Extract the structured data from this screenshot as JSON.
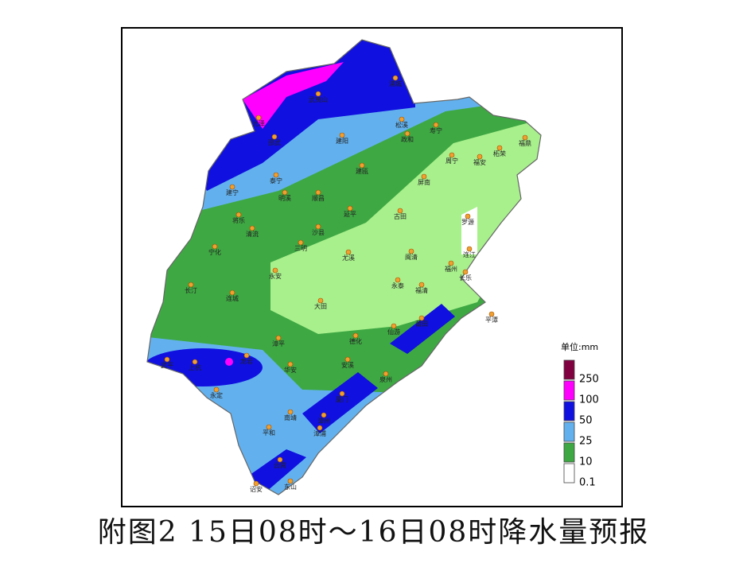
{
  "legend": {
    "unit": "单位:mm",
    "items": [
      {
        "label": 250,
        "color": "#800040"
      },
      {
        "label": 100,
        "color": "#ff00ff"
      },
      {
        "label": 50,
        "color": "#1010e0"
      },
      {
        "label": 25,
        "color": "#62b1ee"
      },
      {
        "label": 10,
        "color": "#3ea843"
      },
      {
        "label": 0.1,
        "color": "#ffffff"
      }
    ]
  },
  "cities": [
    "浦城",
    "武夷山",
    "光泽",
    "邵武",
    "建阳",
    "松溪",
    "政和",
    "寿宁",
    "柘荣",
    "福鼎",
    "周宁",
    "福安",
    "屏南",
    "古田",
    "罗源",
    "连江",
    "福州",
    "长乐",
    "福清",
    "平潭",
    "永泰",
    "闽清",
    "尤溪",
    "三明",
    "沙县",
    "永安",
    "大田",
    "德化",
    "仙游",
    "莆田",
    "泉州",
    "安溪",
    "漳平",
    "华安",
    "长汀",
    "连城",
    "宁化",
    "清流",
    "明溪",
    "将乐",
    "泰宁",
    "建宁",
    "顺昌",
    "建瓯",
    "延平",
    "龙岩",
    "上杭",
    "武平",
    "永定",
    "南靖",
    "漳州",
    "厦门",
    "平和",
    "漳浦",
    "云霄",
    "诏安",
    "东山"
  ],
  "caption": "附图2 15日08时～16日08时降水量预报"
}
